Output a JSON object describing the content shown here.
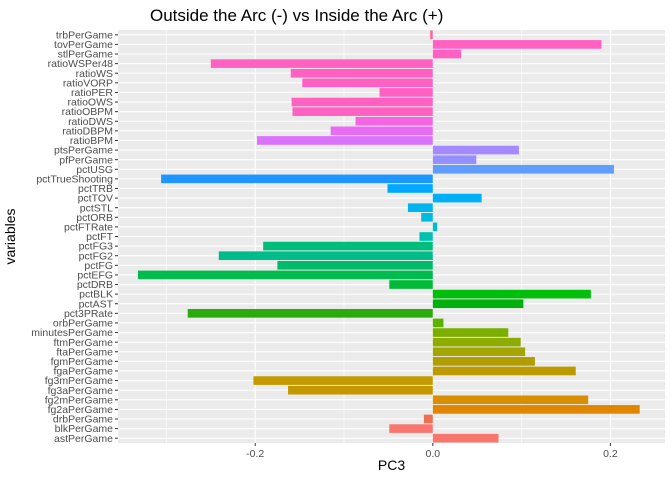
{
  "chart_data": {
    "type": "bar",
    "orientation": "horizontal",
    "title": "Outside the Arc (-) vs Inside the Arc (+)",
    "xlabel": "PC3",
    "ylabel": "variables",
    "xlim": [
      -0.3545,
      0.2615
    ],
    "x_ticks": [
      -0.2,
      0.0,
      0.2
    ],
    "x_tick_labels": [
      "-0.2",
      "0.0",
      "0.2"
    ],
    "grid": true,
    "legend": "none",
    "categories": [
      "trbPerGame",
      "tovPerGame",
      "stlPerGame",
      "ratioWSPer48",
      "ratioWS",
      "ratioVORP",
      "ratioPER",
      "ratioOWS",
      "ratioOBPM",
      "ratioDWS",
      "ratioDBPM",
      "ratioBPM",
      "ptsPerGame",
      "pfPerGame",
      "pctUSG",
      "pctTrueShooting",
      "pctTRB",
      "pctTOV",
      "pctSTL",
      "pctORB",
      "pctFTRate",
      "pctFT",
      "pctFG3",
      "pctFG2",
      "pctFG",
      "pctEFG",
      "pctDRB",
      "pctBLK",
      "pctAST",
      "pct3PRate",
      "orbPerGame",
      "minutesPerGame",
      "ftmPerGame",
      "ftaPerGame",
      "fgmPerGame",
      "fgaPerGame",
      "fg3mPerGame",
      "fg3aPerGame",
      "fg2mPerGame",
      "fg2aPerGame",
      "drbPerGame",
      "blkPerGame",
      "astPerGame"
    ],
    "values": [
      -0.003,
      0.19,
      0.032,
      -0.25,
      -0.16,
      -0.147,
      -0.06,
      -0.159,
      -0.158,
      -0.087,
      -0.115,
      -0.198,
      0.097,
      0.049,
      0.204,
      -0.306,
      -0.051,
      0.055,
      -0.028,
      -0.013,
      0.005,
      -0.015,
      -0.191,
      -0.241,
      -0.175,
      -0.332,
      -0.049,
      0.178,
      0.102,
      -0.276,
      0.012,
      0.085,
      0.099,
      0.104,
      0.115,
      0.161,
      -0.202,
      -0.163,
      0.175,
      0.233,
      -0.01,
      -0.049,
      0.074
    ],
    "colors": [
      "#FF689F",
      "#FF61C3",
      "#FF61C3",
      "#FF61C3",
      "#FF61C3",
      "#FF61C3",
      "#FF61C3",
      "#FF61C3",
      "#FF61C3",
      "#F564E3",
      "#E76BF3",
      "#DB72FB",
      "#A58AFF",
      "#9590FF",
      "#619CFF",
      "#1E96FF",
      "#00A9FF",
      "#00B0F6",
      "#00B4EF",
      "#00BAE0",
      "#00BFC4",
      "#00C0AF",
      "#00BE7A",
      "#00BC88",
      "#00BC6A",
      "#00BB4E",
      "#00BA38",
      "#00BF0A",
      "#00B00D",
      "#2AAA0B",
      "#5BB300",
      "#7CAE00",
      "#8EAB00",
      "#A3A500",
      "#B09D00",
      "#BD9A00",
      "#C49A00",
      "#C59700",
      "#D89000",
      "#E08600",
      "#F06E52",
      "#F8766D",
      "#F8766D"
    ]
  }
}
